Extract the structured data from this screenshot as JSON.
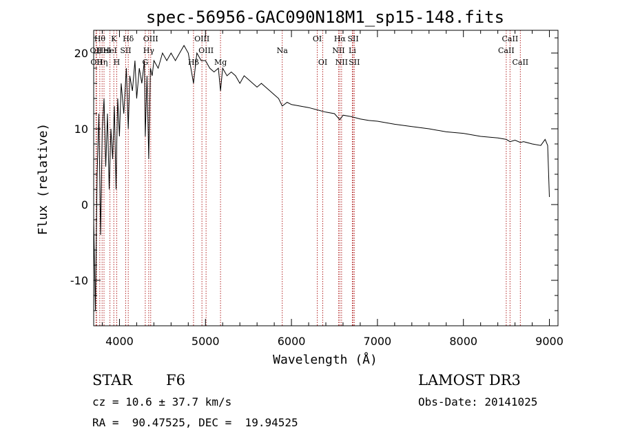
{
  "chart_data": {
    "type": "line",
    "title": "spec-56956-GAC090N18M1_sp15-148.fits",
    "xlabel": "Wavelength (Å)",
    "ylabel": "Flux (relative)",
    "xlim": [
      3700,
      9100
    ],
    "ylim": [
      -16,
      23
    ],
    "xticks": [
      4000,
      5000,
      6000,
      7000,
      8000,
      9000
    ],
    "yticks": [
      -10,
      0,
      10,
      20
    ],
    "series": [
      {
        "name": "spectrum",
        "x": [
          3700,
          3720,
          3740,
          3760,
          3780,
          3800,
          3820,
          3840,
          3860,
          3880,
          3900,
          3920,
          3940,
          3960,
          3968,
          3980,
          4000,
          4020,
          4050,
          4080,
          4102,
          4120,
          4150,
          4180,
          4200,
          4230,
          4260,
          4290,
          4300,
          4320,
          4340,
          4360,
          4380,
          4400,
          4450,
          4500,
          4550,
          4600,
          4650,
          4700,
          4750,
          4800,
          4861,
          4900,
          4950,
          5000,
          5050,
          5100,
          5150,
          5175,
          5200,
          5250,
          5300,
          5350,
          5400,
          5450,
          5500,
          5550,
          5600,
          5650,
          5700,
          5750,
          5800,
          5850,
          5893,
          5950,
          6000,
          6100,
          6200,
          6300,
          6400,
          6500,
          6563,
          6600,
          6700,
          6800,
          6900,
          7000,
          7200,
          7400,
          7600,
          7800,
          8000,
          8200,
          8400,
          8498,
          8542,
          8600,
          8662,
          8700,
          8800,
          8900,
          8950,
          8980,
          9000
        ],
        "values": [
          -2,
          -14,
          4,
          12,
          -4,
          10,
          14,
          5,
          12,
          2,
          10,
          6,
          13,
          2,
          8,
          14,
          9,
          16,
          12,
          18,
          10,
          17,
          15,
          19,
          14,
          18,
          16,
          19,
          9,
          17,
          6,
          18,
          17,
          19,
          18,
          20,
          19,
          20,
          19,
          20,
          21,
          20,
          16,
          20,
          19,
          19,
          18,
          17.5,
          18,
          15,
          18,
          17,
          17.5,
          17,
          16,
          17,
          16.5,
          16,
          15.5,
          16,
          15.5,
          15,
          14.5,
          14,
          13,
          13.5,
          13.2,
          13,
          12.8,
          12.5,
          12.2,
          12,
          11.2,
          11.8,
          11.6,
          11.3,
          11.1,
          11,
          10.6,
          10.3,
          10,
          9.6,
          9.4,
          9,
          8.8,
          8.6,
          8.3,
          8.5,
          8.2,
          8.3,
          8,
          7.8,
          8.6,
          7.8,
          1
        ]
      }
    ],
    "line_markers": [
      {
        "wavelength": 3771,
        "label": "Hθ",
        "row": 0
      },
      {
        "wavelength": 3798,
        "label": "Hη",
        "row": 2
      },
      {
        "wavelength": 3727,
        "label": "OII",
        "row": 1
      },
      {
        "wavelength": 3734,
        "label": "OII",
        "row": 2
      },
      {
        "wavelength": 3820,
        "label": "HeI",
        "row": 1
      },
      {
        "wavelength": 3889,
        "label": "HeI",
        "row": 1
      },
      {
        "wavelength": 3934,
        "label": "K",
        "row": 0
      },
      {
        "wavelength": 3968,
        "label": "H",
        "row": 2
      },
      {
        "wavelength": 4072,
        "label": "SII",
        "row": 1
      },
      {
        "wavelength": 4102,
        "label": "Hδ",
        "row": 0
      },
      {
        "wavelength": 4300,
        "label": "G",
        "row": 2
      },
      {
        "wavelength": 4340,
        "label": "Hγ",
        "row": 1
      },
      {
        "wavelength": 4363,
        "label": "OIII",
        "row": 0
      },
      {
        "wavelength": 4861,
        "label": "Hβ",
        "row": 2
      },
      {
        "wavelength": 4959,
        "label": "OIII",
        "row": 0
      },
      {
        "wavelength": 5007,
        "label": "OIII",
        "row": 1
      },
      {
        "wavelength": 5175,
        "label": "Mg",
        "row": 2
      },
      {
        "wavelength": 5893,
        "label": "Na",
        "row": 1
      },
      {
        "wavelength": 6300,
        "label": "OI",
        "row": 0
      },
      {
        "wavelength": 6364,
        "label": "OI",
        "row": 2
      },
      {
        "wavelength": 6548,
        "label": "NII",
        "row": 1
      },
      {
        "wavelength": 6563,
        "label": "Hα",
        "row": 0
      },
      {
        "wavelength": 6583,
        "label": "NII",
        "row": 2
      },
      {
        "wavelength": 6708,
        "label": "Li",
        "row": 1
      },
      {
        "wavelength": 6717,
        "label": "SII",
        "row": 0
      },
      {
        "wavelength": 6731,
        "label": "SII",
        "row": 2
      },
      {
        "wavelength": 8498,
        "label": "CaII",
        "row": 1
      },
      {
        "wavelength": 8542,
        "label": "CaII",
        "row": 0
      },
      {
        "wavelength": 8662,
        "label": "CaII",
        "row": 2
      }
    ]
  },
  "info": {
    "object_type": "STAR",
    "subclass": "F6",
    "survey": "LAMOST DR3",
    "redshift": "cz = 10.6 ± 37.7 km/s",
    "obs_date": "Obs-Date: 20141025",
    "coords": "RA =  90.47525, DEC =  19.94525"
  },
  "colors": {
    "line_marker": "#b22222",
    "spectrum": "#000000",
    "axes": "#000000"
  }
}
